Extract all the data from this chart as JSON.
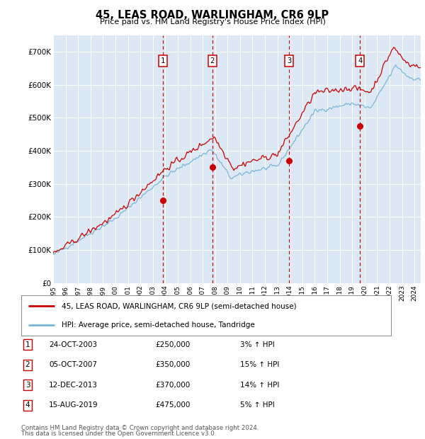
{
  "title": "45, LEAS ROAD, WARLINGHAM, CR6 9LP",
  "subtitle": "Price paid vs. HM Land Registry's House Price Index (HPI)",
  "background_color": "#dce9f5",
  "ylim": [
    0,
    750000
  ],
  "yticks": [
    0,
    100000,
    200000,
    300000,
    400000,
    500000,
    600000,
    700000
  ],
  "ytick_labels": [
    "£0",
    "£100K",
    "£200K",
    "£300K",
    "£400K",
    "£500K",
    "£600K",
    "£700K"
  ],
  "legend_line1": "45, LEAS ROAD, WARLINGHAM, CR6 9LP (semi-detached house)",
  "legend_line2": "HPI: Average price, semi-detached house, Tandridge",
  "transactions": [
    {
      "num": 1,
      "date": "24-OCT-2003",
      "price": "£250,000",
      "pct": "3% ↑ HPI",
      "year": 2003.82
    },
    {
      "num": 2,
      "date": "05-OCT-2007",
      "price": "£350,000",
      "pct": "15% ↑ HPI",
      "year": 2007.77
    },
    {
      "num": 3,
      "date": "12-DEC-2013",
      "price": "£370,000",
      "pct": "14% ↑ HPI",
      "year": 2013.95
    },
    {
      "num": 4,
      "date": "15-AUG-2019",
      "price": "£475,000",
      "pct": "5% ↑ HPI",
      "year": 2019.62
    }
  ],
  "footer_line1": "Contains HM Land Registry data © Crown copyright and database right 2024.",
  "footer_line2": "This data is licensed under the Open Government Licence v3.0.",
  "hpi_color": "#7ab4d8",
  "price_color": "#cc0000",
  "vline_color": "#cc0000",
  "xlim_start": 1995,
  "xlim_end": 2024.5,
  "xtick_years": [
    1995,
    1996,
    1997,
    1998,
    1999,
    2000,
    2001,
    2002,
    2003,
    2004,
    2005,
    2006,
    2007,
    2008,
    2009,
    2010,
    2011,
    2012,
    2013,
    2014,
    2015,
    2016,
    2017,
    2018,
    2019,
    2020,
    2021,
    2022,
    2023,
    2024
  ]
}
